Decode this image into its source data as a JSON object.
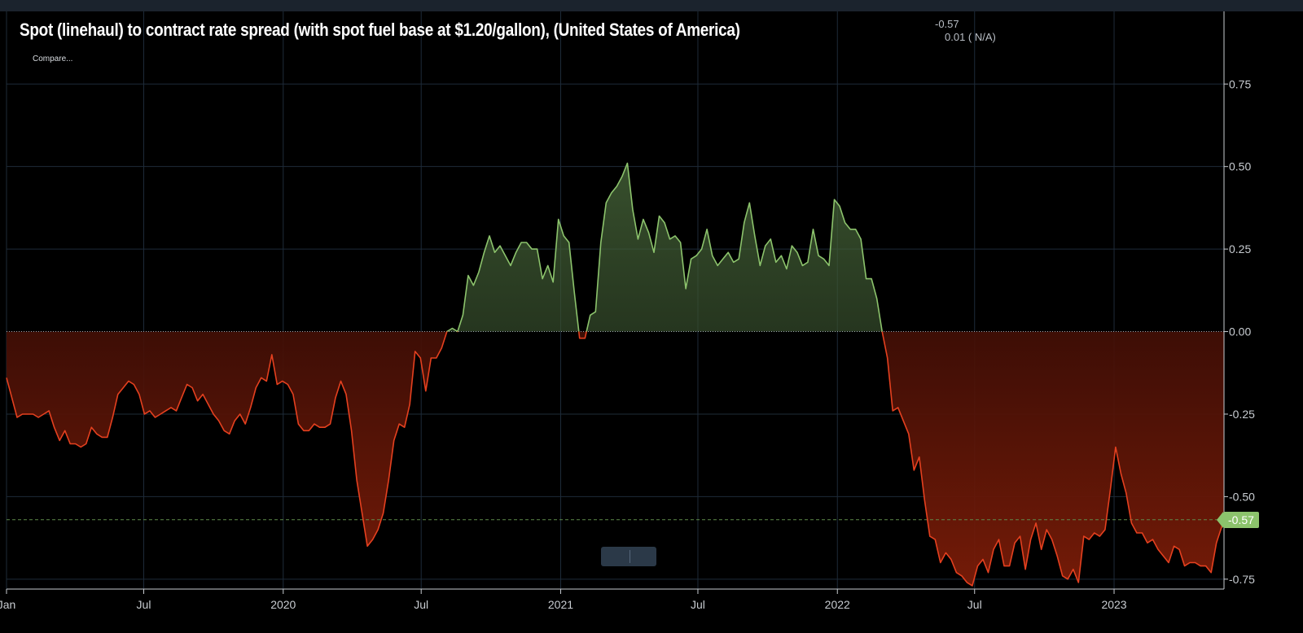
{
  "header": {
    "title": "Spot (linehaul) to contract rate spread (with spot fuel base at $1.20/gallon), (United States of America)",
    "current_value": "-0.57",
    "change_value": "0.01 ( N/A)",
    "compare_label": "Compare..."
  },
  "last_value_badge": "-0.57",
  "colors": {
    "positive_line": "#8cc36c",
    "negative_line": "#e5401f",
    "grid": "#1e2b39",
    "background": "#000000",
    "zero_line": "#9aa3ad",
    "last_value_line": "#5f8a4a"
  },
  "chart_data": {
    "type": "area",
    "title": "Spot (linehaul) to contract rate spread (with spot fuel base at $1.20/gallon), (United States of America)",
    "xlabel": "",
    "ylabel": "",
    "x_range": [
      "2019-01-01",
      "2023-05-26"
    ],
    "ylim": [
      -0.78,
      0.97
    ],
    "y_ticks": [
      0.75,
      0.5,
      0.25,
      0.0,
      -0.25,
      -0.5,
      -0.75
    ],
    "y_tick_labels": [
      "0.75",
      "0.50",
      "0.25",
      "0.00",
      "-0.25",
      "-0.50",
      "-0.75"
    ],
    "x_ticks": [
      {
        "date": "2019-01-01",
        "label": "Jan"
      },
      {
        "date": "2019-07-01",
        "label": "Jul"
      },
      {
        "date": "2020-01-01",
        "label": "2020"
      },
      {
        "date": "2020-07-01",
        "label": "Jul"
      },
      {
        "date": "2021-01-01",
        "label": "2021"
      },
      {
        "date": "2021-07-01",
        "label": "Jul"
      },
      {
        "date": "2022-01-01",
        "label": "2022"
      },
      {
        "date": "2022-07-01",
        "label": "Jul"
      },
      {
        "date": "2023-01-01",
        "label": "2023"
      }
    ],
    "grid": true,
    "baseline": 0,
    "colored_by_sign": true,
    "last_value_line": -0.57,
    "series": [
      {
        "name": "",
        "points": [
          [
            "2019-01-01",
            -0.14
          ],
          [
            "2019-01-08",
            -0.2
          ],
          [
            "2019-01-15",
            -0.26
          ],
          [
            "2019-01-22",
            -0.25
          ],
          [
            "2019-01-29",
            -0.25
          ],
          [
            "2019-02-05",
            -0.25
          ],
          [
            "2019-02-12",
            -0.26
          ],
          [
            "2019-02-19",
            -0.25
          ],
          [
            "2019-02-26",
            -0.24
          ],
          [
            "2019-03-05",
            -0.29
          ],
          [
            "2019-03-12",
            -0.33
          ],
          [
            "2019-03-19",
            -0.3
          ],
          [
            "2019-03-26",
            -0.34
          ],
          [
            "2019-04-02",
            -0.34
          ],
          [
            "2019-04-09",
            -0.35
          ],
          [
            "2019-04-16",
            -0.34
          ],
          [
            "2019-04-23",
            -0.29
          ],
          [
            "2019-04-30",
            -0.31
          ],
          [
            "2019-05-07",
            -0.32
          ],
          [
            "2019-05-14",
            -0.32
          ],
          [
            "2019-05-21",
            -0.26
          ],
          [
            "2019-05-28",
            -0.19
          ],
          [
            "2019-06-04",
            -0.17
          ],
          [
            "2019-06-11",
            -0.15
          ],
          [
            "2019-06-18",
            -0.16
          ],
          [
            "2019-06-25",
            -0.19
          ],
          [
            "2019-07-02",
            -0.25
          ],
          [
            "2019-07-09",
            -0.24
          ],
          [
            "2019-07-16",
            -0.26
          ],
          [
            "2019-07-23",
            -0.25
          ],
          [
            "2019-07-30",
            -0.24
          ],
          [
            "2019-08-06",
            -0.23
          ],
          [
            "2019-08-13",
            -0.24
          ],
          [
            "2019-08-20",
            -0.2
          ],
          [
            "2019-08-27",
            -0.16
          ],
          [
            "2019-09-03",
            -0.17
          ],
          [
            "2019-09-10",
            -0.21
          ],
          [
            "2019-09-17",
            -0.19
          ],
          [
            "2019-09-24",
            -0.22
          ],
          [
            "2019-10-01",
            -0.25
          ],
          [
            "2019-10-08",
            -0.27
          ],
          [
            "2019-10-15",
            -0.3
          ],
          [
            "2019-10-22",
            -0.31
          ],
          [
            "2019-10-29",
            -0.27
          ],
          [
            "2019-11-05",
            -0.25
          ],
          [
            "2019-11-12",
            -0.28
          ],
          [
            "2019-11-19",
            -0.23
          ],
          [
            "2019-11-26",
            -0.17
          ],
          [
            "2019-12-03",
            -0.14
          ],
          [
            "2019-12-10",
            -0.15
          ],
          [
            "2019-12-17",
            -0.07
          ],
          [
            "2019-12-24",
            -0.16
          ],
          [
            "2019-12-31",
            -0.15
          ],
          [
            "2020-01-07",
            -0.16
          ],
          [
            "2020-01-14",
            -0.19
          ],
          [
            "2020-01-21",
            -0.28
          ],
          [
            "2020-01-28",
            -0.3
          ],
          [
            "2020-02-04",
            -0.3
          ],
          [
            "2020-02-11",
            -0.28
          ],
          [
            "2020-02-18",
            -0.29
          ],
          [
            "2020-02-25",
            -0.29
          ],
          [
            "2020-03-03",
            -0.28
          ],
          [
            "2020-03-10",
            -0.2
          ],
          [
            "2020-03-17",
            -0.15
          ],
          [
            "2020-03-24",
            -0.19
          ],
          [
            "2020-03-31",
            -0.3
          ],
          [
            "2020-04-07",
            -0.45
          ],
          [
            "2020-04-14",
            -0.55
          ],
          [
            "2020-04-21",
            -0.65
          ],
          [
            "2020-04-28",
            -0.63
          ],
          [
            "2020-05-05",
            -0.6
          ],
          [
            "2020-05-12",
            -0.55
          ],
          [
            "2020-05-19",
            -0.45
          ],
          [
            "2020-05-26",
            -0.33
          ],
          [
            "2020-06-02",
            -0.28
          ],
          [
            "2020-06-09",
            -0.29
          ],
          [
            "2020-06-16",
            -0.22
          ],
          [
            "2020-06-23",
            -0.06
          ],
          [
            "2020-06-30",
            -0.08
          ],
          [
            "2020-07-07",
            -0.18
          ],
          [
            "2020-07-14",
            -0.08
          ],
          [
            "2020-07-21",
            -0.08
          ],
          [
            "2020-07-28",
            -0.05
          ],
          [
            "2020-08-04",
            0.0
          ],
          [
            "2020-08-11",
            0.01
          ],
          [
            "2020-08-18",
            0.0
          ],
          [
            "2020-08-25",
            0.05
          ],
          [
            "2020-09-01",
            0.17
          ],
          [
            "2020-09-08",
            0.14
          ],
          [
            "2020-09-15",
            0.18
          ],
          [
            "2020-09-22",
            0.24
          ],
          [
            "2020-09-29",
            0.29
          ],
          [
            "2020-10-06",
            0.24
          ],
          [
            "2020-10-13",
            0.26
          ],
          [
            "2020-10-20",
            0.23
          ],
          [
            "2020-10-27",
            0.2
          ],
          [
            "2020-11-03",
            0.24
          ],
          [
            "2020-11-10",
            0.27
          ],
          [
            "2020-11-17",
            0.27
          ],
          [
            "2020-11-24",
            0.25
          ],
          [
            "2020-12-01",
            0.25
          ],
          [
            "2020-12-08",
            0.16
          ],
          [
            "2020-12-15",
            0.2
          ],
          [
            "2020-12-22",
            0.15
          ],
          [
            "2020-12-29",
            0.34
          ],
          [
            "2021-01-05",
            0.29
          ],
          [
            "2021-01-12",
            0.27
          ],
          [
            "2021-01-19",
            0.12
          ],
          [
            "2021-01-26",
            -0.02
          ],
          [
            "2021-02-02",
            -0.02
          ],
          [
            "2021-02-09",
            0.05
          ],
          [
            "2021-02-16",
            0.06
          ],
          [
            "2021-02-23",
            0.27
          ],
          [
            "2021-03-02",
            0.39
          ],
          [
            "2021-03-09",
            0.42
          ],
          [
            "2021-03-16",
            0.44
          ],
          [
            "2021-03-23",
            0.47
          ],
          [
            "2021-03-30",
            0.51
          ],
          [
            "2021-04-06",
            0.37
          ],
          [
            "2021-04-13",
            0.28
          ],
          [
            "2021-04-20",
            0.34
          ],
          [
            "2021-04-27",
            0.3
          ],
          [
            "2021-05-04",
            0.24
          ],
          [
            "2021-05-11",
            0.35
          ],
          [
            "2021-05-18",
            0.33
          ],
          [
            "2021-05-25",
            0.28
          ],
          [
            "2021-06-01",
            0.29
          ],
          [
            "2021-06-08",
            0.27
          ],
          [
            "2021-06-15",
            0.13
          ],
          [
            "2021-06-22",
            0.22
          ],
          [
            "2021-06-29",
            0.23
          ],
          [
            "2021-07-06",
            0.25
          ],
          [
            "2021-07-13",
            0.31
          ],
          [
            "2021-07-20",
            0.23
          ],
          [
            "2021-07-27",
            0.2
          ],
          [
            "2021-08-03",
            0.22
          ],
          [
            "2021-08-10",
            0.24
          ],
          [
            "2021-08-17",
            0.21
          ],
          [
            "2021-08-24",
            0.22
          ],
          [
            "2021-08-31",
            0.33
          ],
          [
            "2021-09-07",
            0.39
          ],
          [
            "2021-09-14",
            0.29
          ],
          [
            "2021-09-21",
            0.2
          ],
          [
            "2021-09-28",
            0.26
          ],
          [
            "2021-10-05",
            0.28
          ],
          [
            "2021-10-12",
            0.21
          ],
          [
            "2021-10-19",
            0.23
          ],
          [
            "2021-10-26",
            0.19
          ],
          [
            "2021-11-02",
            0.26
          ],
          [
            "2021-11-09",
            0.24
          ],
          [
            "2021-11-16",
            0.2
          ],
          [
            "2021-11-23",
            0.21
          ],
          [
            "2021-11-30",
            0.31
          ],
          [
            "2021-12-07",
            0.23
          ],
          [
            "2021-12-14",
            0.22
          ],
          [
            "2021-12-21",
            0.2
          ],
          [
            "2021-12-28",
            0.4
          ],
          [
            "2022-01-04",
            0.38
          ],
          [
            "2022-01-11",
            0.33
          ],
          [
            "2022-01-18",
            0.31
          ],
          [
            "2022-01-25",
            0.31
          ],
          [
            "2022-02-01",
            0.28
          ],
          [
            "2022-02-08",
            0.16
          ],
          [
            "2022-02-15",
            0.16
          ],
          [
            "2022-02-22",
            0.1
          ],
          [
            "2022-03-01",
            0.0
          ],
          [
            "2022-03-08",
            -0.08
          ],
          [
            "2022-03-15",
            -0.24
          ],
          [
            "2022-03-22",
            -0.23
          ],
          [
            "2022-03-29",
            -0.27
          ],
          [
            "2022-04-05",
            -0.31
          ],
          [
            "2022-04-12",
            -0.42
          ],
          [
            "2022-04-19",
            -0.38
          ],
          [
            "2022-04-26",
            -0.51
          ],
          [
            "2022-05-03",
            -0.62
          ],
          [
            "2022-05-10",
            -0.63
          ],
          [
            "2022-05-17",
            -0.7
          ],
          [
            "2022-05-24",
            -0.67
          ],
          [
            "2022-05-31",
            -0.69
          ],
          [
            "2022-06-07",
            -0.73
          ],
          [
            "2022-06-14",
            -0.74
          ],
          [
            "2022-06-21",
            -0.76
          ],
          [
            "2022-06-28",
            -0.77
          ],
          [
            "2022-07-05",
            -0.71
          ],
          [
            "2022-07-12",
            -0.69
          ],
          [
            "2022-07-19",
            -0.73
          ],
          [
            "2022-07-26",
            -0.66
          ],
          [
            "2022-08-02",
            -0.63
          ],
          [
            "2022-08-09",
            -0.71
          ],
          [
            "2022-08-16",
            -0.71
          ],
          [
            "2022-08-23",
            -0.64
          ],
          [
            "2022-08-30",
            -0.62
          ],
          [
            "2022-09-06",
            -0.72
          ],
          [
            "2022-09-13",
            -0.63
          ],
          [
            "2022-09-20",
            -0.58
          ],
          [
            "2022-09-27",
            -0.66
          ],
          [
            "2022-10-04",
            -0.6
          ],
          [
            "2022-10-11",
            -0.63
          ],
          [
            "2022-10-18",
            -0.68
          ],
          [
            "2022-10-25",
            -0.74
          ],
          [
            "2022-11-01",
            -0.75
          ],
          [
            "2022-11-08",
            -0.72
          ],
          [
            "2022-11-15",
            -0.76
          ],
          [
            "2022-11-22",
            -0.62
          ],
          [
            "2022-11-29",
            -0.63
          ],
          [
            "2022-12-06",
            -0.61
          ],
          [
            "2022-12-13",
            -0.62
          ],
          [
            "2022-12-20",
            -0.6
          ],
          [
            "2022-12-27",
            -0.48
          ],
          [
            "2023-01-03",
            -0.35
          ],
          [
            "2023-01-10",
            -0.43
          ],
          [
            "2023-01-17",
            -0.49
          ],
          [
            "2023-01-24",
            -0.58
          ],
          [
            "2023-01-31",
            -0.61
          ],
          [
            "2023-02-07",
            -0.61
          ],
          [
            "2023-02-14",
            -0.64
          ],
          [
            "2023-02-21",
            -0.63
          ],
          [
            "2023-02-28",
            -0.66
          ],
          [
            "2023-03-07",
            -0.68
          ],
          [
            "2023-03-14",
            -0.7
          ],
          [
            "2023-03-21",
            -0.65
          ],
          [
            "2023-03-28",
            -0.66
          ],
          [
            "2023-04-04",
            -0.71
          ],
          [
            "2023-04-11",
            -0.7
          ],
          [
            "2023-04-18",
            -0.7
          ],
          [
            "2023-04-25",
            -0.71
          ],
          [
            "2023-05-02",
            -0.71
          ],
          [
            "2023-05-09",
            -0.73
          ],
          [
            "2023-05-16",
            -0.64
          ],
          [
            "2023-05-26",
            -0.57
          ]
        ]
      }
    ]
  }
}
